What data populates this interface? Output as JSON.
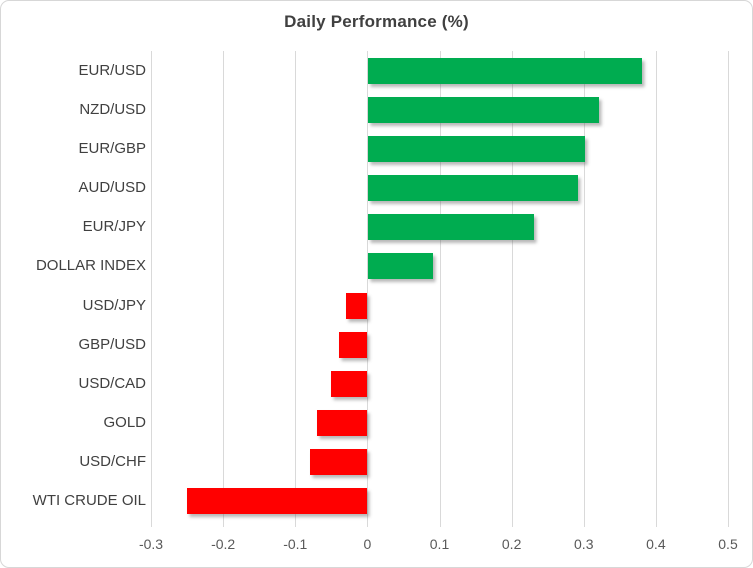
{
  "chart_data": {
    "type": "bar",
    "orientation": "horizontal",
    "title": "Daily Performance (%)",
    "categories": [
      "EUR/USD",
      "NZD/USD",
      "EUR/GBP",
      "AUD/USD",
      "EUR/JPY",
      "DOLLAR INDEX",
      "USD/JPY",
      "GBP/USD",
      "USD/CAD",
      "GOLD",
      "USD/CHF",
      "WTI CRUDE OIL"
    ],
    "values": [
      0.38,
      0.32,
      0.3,
      0.29,
      0.23,
      0.09,
      -0.03,
      -0.04,
      -0.05,
      -0.07,
      -0.08,
      -0.25
    ],
    "xlim": [
      -0.3,
      0.5
    ],
    "x_ticks": [
      -0.3,
      -0.2,
      -0.1,
      0,
      0.1,
      0.2,
      0.3,
      0.4,
      0.5
    ],
    "x_tick_labels": [
      "-0.3",
      "-0.2",
      "-0.1",
      "0",
      "0.1",
      "0.2",
      "0.3",
      "0.4",
      "0.5"
    ],
    "grid": "vertical-only",
    "legend": "none",
    "ylabel": "",
    "xlabel": "",
    "colors": {
      "positive_bar": "#00AC50",
      "negative_bar": "#FF0000",
      "gridline": "#D9D9D9",
      "axis_text": "#595959",
      "category_text": "#404040",
      "title_text": "#404040",
      "frame_border": "#D7D7D7",
      "background": "#FFFFFF"
    }
  }
}
